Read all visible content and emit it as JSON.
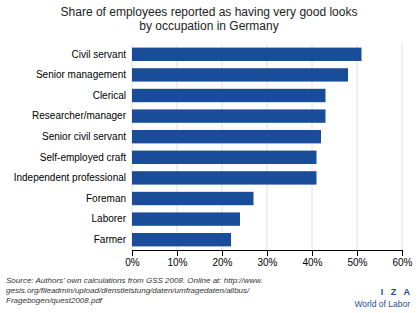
{
  "chart_data": {
    "type": "bar",
    "orientation": "horizontal",
    "title": "Share of employees reported as having very good looks\nby occupation in Germany",
    "categories": [
      "Farmer",
      "Laborer",
      "Foreman",
      "Independent professional",
      "Self-employed craft",
      "Senior civil servant",
      "Researcher/manager",
      "Clerical",
      "Senior management",
      "Civil servant"
    ],
    "values": [
      22,
      24,
      27,
      41,
      41,
      42,
      43,
      43,
      48,
      51
    ],
    "color": "#1a4d99",
    "xlim": [
      0,
      60
    ],
    "xticks": [
      {
        "value": 0,
        "label": "0%"
      },
      {
        "value": 10,
        "label": "10%"
      },
      {
        "value": 20,
        "label": "20%"
      },
      {
        "value": 30,
        "label": "30%"
      },
      {
        "value": 40,
        "label": "40%"
      },
      {
        "value": 50,
        "label": "50%"
      },
      {
        "value": 60,
        "label": "60%"
      }
    ],
    "grid": true,
    "annotations": [
      "Source: Authors' own calculations from GSS 2008. Online at: http://www.\ngesis.org/fileadmin/upload/dienstleistung/daten/umfragedaten/allbus/\nFragebogen/quest2008.pdf",
      "I   Z   A",
      "World of Labor"
    ]
  }
}
